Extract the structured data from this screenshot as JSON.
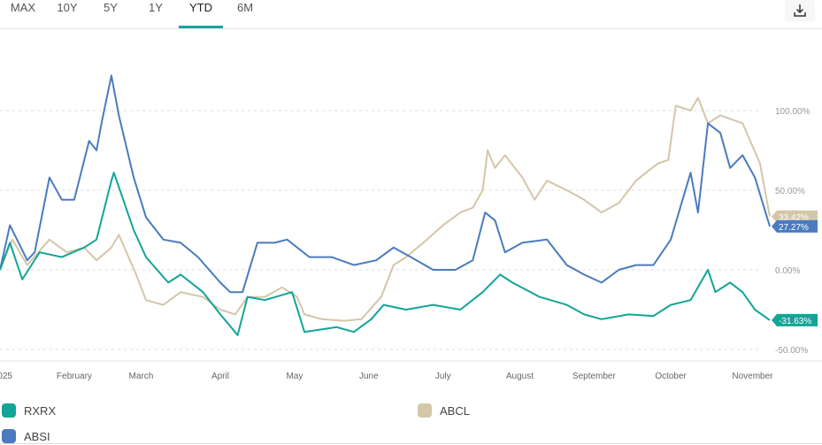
{
  "tabs": [
    {
      "label": "MAX"
    },
    {
      "label": "10Y"
    },
    {
      "label": "5Y"
    },
    {
      "label": "1Y"
    },
    {
      "label": "YTD",
      "active": true
    },
    {
      "label": "6M"
    }
  ],
  "download_icon": "download-icon",
  "chart_data": {
    "type": "line",
    "x_unit": "day of year 2025",
    "xlim": [
      0,
      311
    ],
    "ylim": [
      -50,
      115
    ],
    "y_ticks": [
      {
        "value": 100,
        "label": "100.00%"
      },
      {
        "value": 50,
        "label": "50.00%"
      },
      {
        "value": 0,
        "label": "0.00%"
      },
      {
        "value": -50,
        "label": "-50.00%"
      }
    ],
    "x_ticks": [
      {
        "day": 2,
        "label": "025"
      },
      {
        "day": 30,
        "label": "February"
      },
      {
        "day": 57,
        "label": "March"
      },
      {
        "day": 89,
        "label": "April"
      },
      {
        "day": 119,
        "label": "May"
      },
      {
        "day": 149,
        "label": "June"
      },
      {
        "day": 179,
        "label": "July"
      },
      {
        "day": 210,
        "label": "August"
      },
      {
        "day": 240,
        "label": "September"
      },
      {
        "day": 271,
        "label": "October"
      },
      {
        "day": 304,
        "label": "November"
      }
    ],
    "series": [
      {
        "name": "ABCL",
        "color": "#d4c6a8",
        "end_label": "33.42%",
        "points": [
          [
            0,
            0
          ],
          [
            5,
            19
          ],
          [
            11,
            3
          ],
          [
            20,
            19
          ],
          [
            27,
            11
          ],
          [
            34,
            14
          ],
          [
            39,
            6
          ],
          [
            45,
            14
          ],
          [
            48,
            22
          ],
          [
            55,
            -3
          ],
          [
            59,
            -19
          ],
          [
            66,
            -22
          ],
          [
            73,
            -14
          ],
          [
            82,
            -17
          ],
          [
            89,
            -25
          ],
          [
            95,
            -28
          ],
          [
            100,
            -17
          ],
          [
            107,
            -17
          ],
          [
            114,
            -11
          ],
          [
            120,
            -17
          ],
          [
            123,
            -28
          ],
          [
            130,
            -31
          ],
          [
            139,
            -32
          ],
          [
            146,
            -31
          ],
          [
            154,
            -17
          ],
          [
            159,
            3
          ],
          [
            164,
            8
          ],
          [
            171,
            17
          ],
          [
            179,
            28
          ],
          [
            186,
            36
          ],
          [
            191,
            39
          ],
          [
            195,
            50
          ],
          [
            197,
            75
          ],
          [
            200,
            64
          ],
          [
            204,
            72
          ],
          [
            211,
            58
          ],
          [
            216,
            44
          ],
          [
            221,
            56
          ],
          [
            229,
            50
          ],
          [
            236,
            44
          ],
          [
            243,
            36
          ],
          [
            250,
            42
          ],
          [
            257,
            56
          ],
          [
            261,
            61
          ],
          [
            266,
            67
          ],
          [
            270,
            69
          ],
          [
            273,
            103
          ],
          [
            279,
            100
          ],
          [
            282,
            108
          ],
          [
            286,
            92
          ],
          [
            291,
            97
          ],
          [
            300,
            92
          ],
          [
            307,
            67
          ],
          [
            311,
            33.42
          ]
        ]
      },
      {
        "name": "ABSI",
        "color": "#4a7bbf",
        "end_label": "27.27%",
        "points": [
          [
            0,
            0
          ],
          [
            4,
            28
          ],
          [
            11,
            6
          ],
          [
            14,
            11
          ],
          [
            20,
            58
          ],
          [
            25,
            44
          ],
          [
            30,
            44
          ],
          [
            36,
            81
          ],
          [
            39,
            75
          ],
          [
            41,
            92
          ],
          [
            45,
            122
          ],
          [
            48,
            97
          ],
          [
            54,
            58
          ],
          [
            59,
            33
          ],
          [
            66,
            19
          ],
          [
            73,
            17
          ],
          [
            80,
            8
          ],
          [
            89,
            -8
          ],
          [
            93,
            -14
          ],
          [
            98,
            -14
          ],
          [
            104,
            17
          ],
          [
            111,
            17
          ],
          [
            116,
            19
          ],
          [
            125,
            8
          ],
          [
            134,
            8
          ],
          [
            143,
            3
          ],
          [
            152,
            6
          ],
          [
            159,
            14
          ],
          [
            166,
            8
          ],
          [
            175,
            0
          ],
          [
            184,
            0
          ],
          [
            191,
            6
          ],
          [
            196,
            36
          ],
          [
            200,
            31
          ],
          [
            204,
            11
          ],
          [
            211,
            17
          ],
          [
            221,
            19
          ],
          [
            229,
            3
          ],
          [
            236,
            -3
          ],
          [
            243,
            -8
          ],
          [
            250,
            0
          ],
          [
            257,
            3
          ],
          [
            264,
            3
          ],
          [
            271,
            19
          ],
          [
            279,
            61
          ],
          [
            282,
            36
          ],
          [
            286,
            92
          ],
          [
            291,
            86
          ],
          [
            295,
            64
          ],
          [
            300,
            72
          ],
          [
            305,
            58
          ],
          [
            311,
            27.27
          ]
        ]
      },
      {
        "name": "RXRX",
        "color": "#12a596",
        "end_label": "-31.63%",
        "points": [
          [
            0,
            0
          ],
          [
            4,
            17
          ],
          [
            9,
            -6
          ],
          [
            16,
            11
          ],
          [
            25,
            8
          ],
          [
            34,
            14
          ],
          [
            39,
            19
          ],
          [
            45,
            56
          ],
          [
            46,
            61
          ],
          [
            54,
            25
          ],
          [
            59,
            8
          ],
          [
            68,
            -8
          ],
          [
            73,
            -3
          ],
          [
            82,
            -14
          ],
          [
            89,
            -28
          ],
          [
            96,
            -41
          ],
          [
            100,
            -17
          ],
          [
            107,
            -19
          ],
          [
            118,
            -14
          ],
          [
            123,
            -39
          ],
          [
            136,
            -36
          ],
          [
            143,
            -39
          ],
          [
            150,
            -31
          ],
          [
            155,
            -22
          ],
          [
            164,
            -25
          ],
          [
            175,
            -22
          ],
          [
            186,
            -25
          ],
          [
            195,
            -14
          ],
          [
            202,
            -3
          ],
          [
            207,
            -8
          ],
          [
            218,
            -17
          ],
          [
            229,
            -22
          ],
          [
            236,
            -28
          ],
          [
            243,
            -31
          ],
          [
            254,
            -28
          ],
          [
            264,
            -29
          ],
          [
            271,
            -22
          ],
          [
            279,
            -19
          ],
          [
            286,
            0
          ],
          [
            289,
            -14
          ],
          [
            295,
            -8
          ],
          [
            300,
            -14
          ],
          [
            305,
            -25
          ],
          [
            311,
            -31.63
          ]
        ]
      }
    ]
  },
  "legend": [
    {
      "name": "RXRX",
      "color": "#12a596"
    },
    {
      "name": "ABCL",
      "color": "#d4c6a8"
    },
    {
      "name": "ABSI",
      "color": "#4a7bbf"
    }
  ]
}
